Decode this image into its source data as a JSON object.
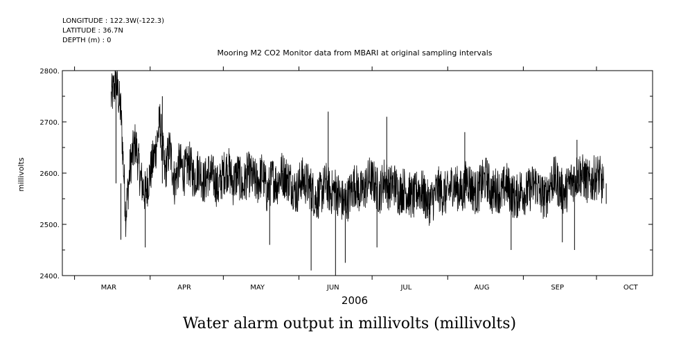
{
  "header": {
    "longitude": "LONGITUDE : 122.3W(-122.3)",
    "latitude": "LATITUDE : 36.7N",
    "depth": "DEPTH (m) : 0"
  },
  "caption": "Water alarm output in millivolts (millivolts)",
  "chart_data": {
    "type": "line",
    "title": "Mooring M2 CO2 Monitor data from MBARI at original sampling intervals",
    "xlabel": "2006",
    "ylabel": "millivolts",
    "ylim": [
      2400,
      2800
    ],
    "yticks": [
      2400,
      2500,
      2600,
      2700,
      2800
    ],
    "ytick_labels": [
      "2400.",
      "2500.",
      "2600.",
      "2700.",
      "2800."
    ],
    "xlim": [
      "2006-02-24",
      "2006-10-24"
    ],
    "x_month_boundaries": [
      "2006-03-01",
      "2006-04-01",
      "2006-05-01",
      "2006-06-01",
      "2006-07-01",
      "2006-08-01",
      "2006-09-01",
      "2006-10-01"
    ],
    "x_month_labels": [
      {
        "label": "MAR",
        "date": "2006-03-15"
      },
      {
        "label": "APR",
        "date": "2006-04-15"
      },
      {
        "label": "MAY",
        "date": "2006-05-15"
      },
      {
        "label": "JUN",
        "date": "2006-06-15"
      },
      {
        "label": "JUL",
        "date": "2006-07-15"
      },
      {
        "label": "AUG",
        "date": "2006-08-15"
      },
      {
        "label": "SEP",
        "date": "2006-09-15"
      },
      {
        "label": "OCT",
        "date": "2006-10-15"
      }
    ],
    "series": [
      {
        "color": "#000000",
        "x": [
          "2006-03-16",
          "2006-03-18",
          "2006-03-20",
          "2006-03-22",
          "2006-03-24",
          "2006-03-26",
          "2006-03-28",
          "2006-03-30",
          "2006-04-01",
          "2006-04-03",
          "2006-04-05",
          "2006-04-07",
          "2006-04-09",
          "2006-04-11",
          "2006-04-13",
          "2006-04-15",
          "2006-04-17",
          "2006-04-19",
          "2006-04-21",
          "2006-04-23",
          "2006-04-25",
          "2006-04-27",
          "2006-04-29",
          "2006-05-01",
          "2006-05-03",
          "2006-05-05",
          "2006-05-07",
          "2006-05-09",
          "2006-05-11",
          "2006-05-13",
          "2006-05-15",
          "2006-05-17",
          "2006-05-19",
          "2006-05-21",
          "2006-05-23",
          "2006-05-25",
          "2006-05-27",
          "2006-05-29",
          "2006-05-31",
          "2006-06-02",
          "2006-06-04",
          "2006-06-06",
          "2006-06-08",
          "2006-06-10",
          "2006-06-12",
          "2006-06-14",
          "2006-06-16",
          "2006-06-18",
          "2006-06-20",
          "2006-06-22",
          "2006-06-24",
          "2006-06-26",
          "2006-06-28",
          "2006-06-30",
          "2006-07-02",
          "2006-07-04",
          "2006-07-06",
          "2006-07-08",
          "2006-07-10",
          "2006-07-12",
          "2006-07-14",
          "2006-07-16",
          "2006-07-18",
          "2006-07-20",
          "2006-07-22",
          "2006-07-24",
          "2006-07-26",
          "2006-07-28",
          "2006-07-30",
          "2006-08-01",
          "2006-08-03",
          "2006-08-05",
          "2006-08-07",
          "2006-08-09",
          "2006-08-11",
          "2006-08-13",
          "2006-08-15",
          "2006-08-17",
          "2006-08-19",
          "2006-08-21",
          "2006-08-23",
          "2006-08-25",
          "2006-08-27",
          "2006-08-29",
          "2006-08-31",
          "2006-09-02",
          "2006-09-04",
          "2006-09-06",
          "2006-09-08",
          "2006-09-10",
          "2006-09-12",
          "2006-09-14",
          "2006-09-16",
          "2006-09-18",
          "2006-09-20",
          "2006-09-22",
          "2006-09-24",
          "2006-09-26",
          "2006-09-28",
          "2006-09-30",
          "2006-10-02",
          "2006-10-04"
        ],
        "y": [
          2745,
          2780,
          2720,
          2520,
          2620,
          2660,
          2590,
          2560,
          2600,
          2640,
          2700,
          2600,
          2650,
          2580,
          2620,
          2600,
          2620,
          2590,
          2610,
          2580,
          2600,
          2590,
          2570,
          2600,
          2610,
          2580,
          2600,
          2570,
          2600,
          2590,
          2580,
          2600,
          2560,
          2590,
          2580,
          2600,
          2590,
          2580,
          2560,
          2590,
          2580,
          2570,
          2550,
          2560,
          2580,
          2560,
          2570,
          2550,
          2540,
          2560,
          2580,
          2560,
          2570,
          2590,
          2580,
          2560,
          2590,
          2570,
          2580,
          2560,
          2570,
          2560,
          2550,
          2570,
          2560,
          2540,
          2550,
          2570,
          2560,
          2560,
          2580,
          2570,
          2560,
          2590,
          2570,
          2560,
          2580,
          2590,
          2560,
          2570,
          2560,
          2580,
          2560,
          2550,
          2570,
          2560,
          2570,
          2580,
          2560,
          2550,
          2580,
          2590,
          2570,
          2560,
          2580,
          2590,
          2600,
          2590,
          2580,
          2590,
          2595,
          2570
        ],
        "noise_amplitude": 45
      }
    ],
    "extremes": [
      {
        "x": "2006-03-18",
        "y": 2785
      },
      {
        "x": "2006-03-20",
        "y": 2470
      },
      {
        "x": "2006-03-30",
        "y": 2455
      },
      {
        "x": "2006-04-06",
        "y": 2750
      },
      {
        "x": "2006-05-20",
        "y": 2460
      },
      {
        "x": "2006-06-06",
        "y": 2410
      },
      {
        "x": "2006-06-13",
        "y": 2720
      },
      {
        "x": "2006-06-16",
        "y": 2400
      },
      {
        "x": "2006-06-20",
        "y": 2425
      },
      {
        "x": "2006-07-07",
        "y": 2710
      },
      {
        "x": "2006-07-03",
        "y": 2455
      },
      {
        "x": "2006-08-08",
        "y": 2680
      },
      {
        "x": "2006-08-27",
        "y": 2450
      },
      {
        "x": "2006-09-17",
        "y": 2465
      },
      {
        "x": "2006-09-22",
        "y": 2450
      },
      {
        "x": "2006-09-23",
        "y": 2665
      },
      {
        "x": "2006-10-05",
        "y": 2540
      }
    ]
  }
}
